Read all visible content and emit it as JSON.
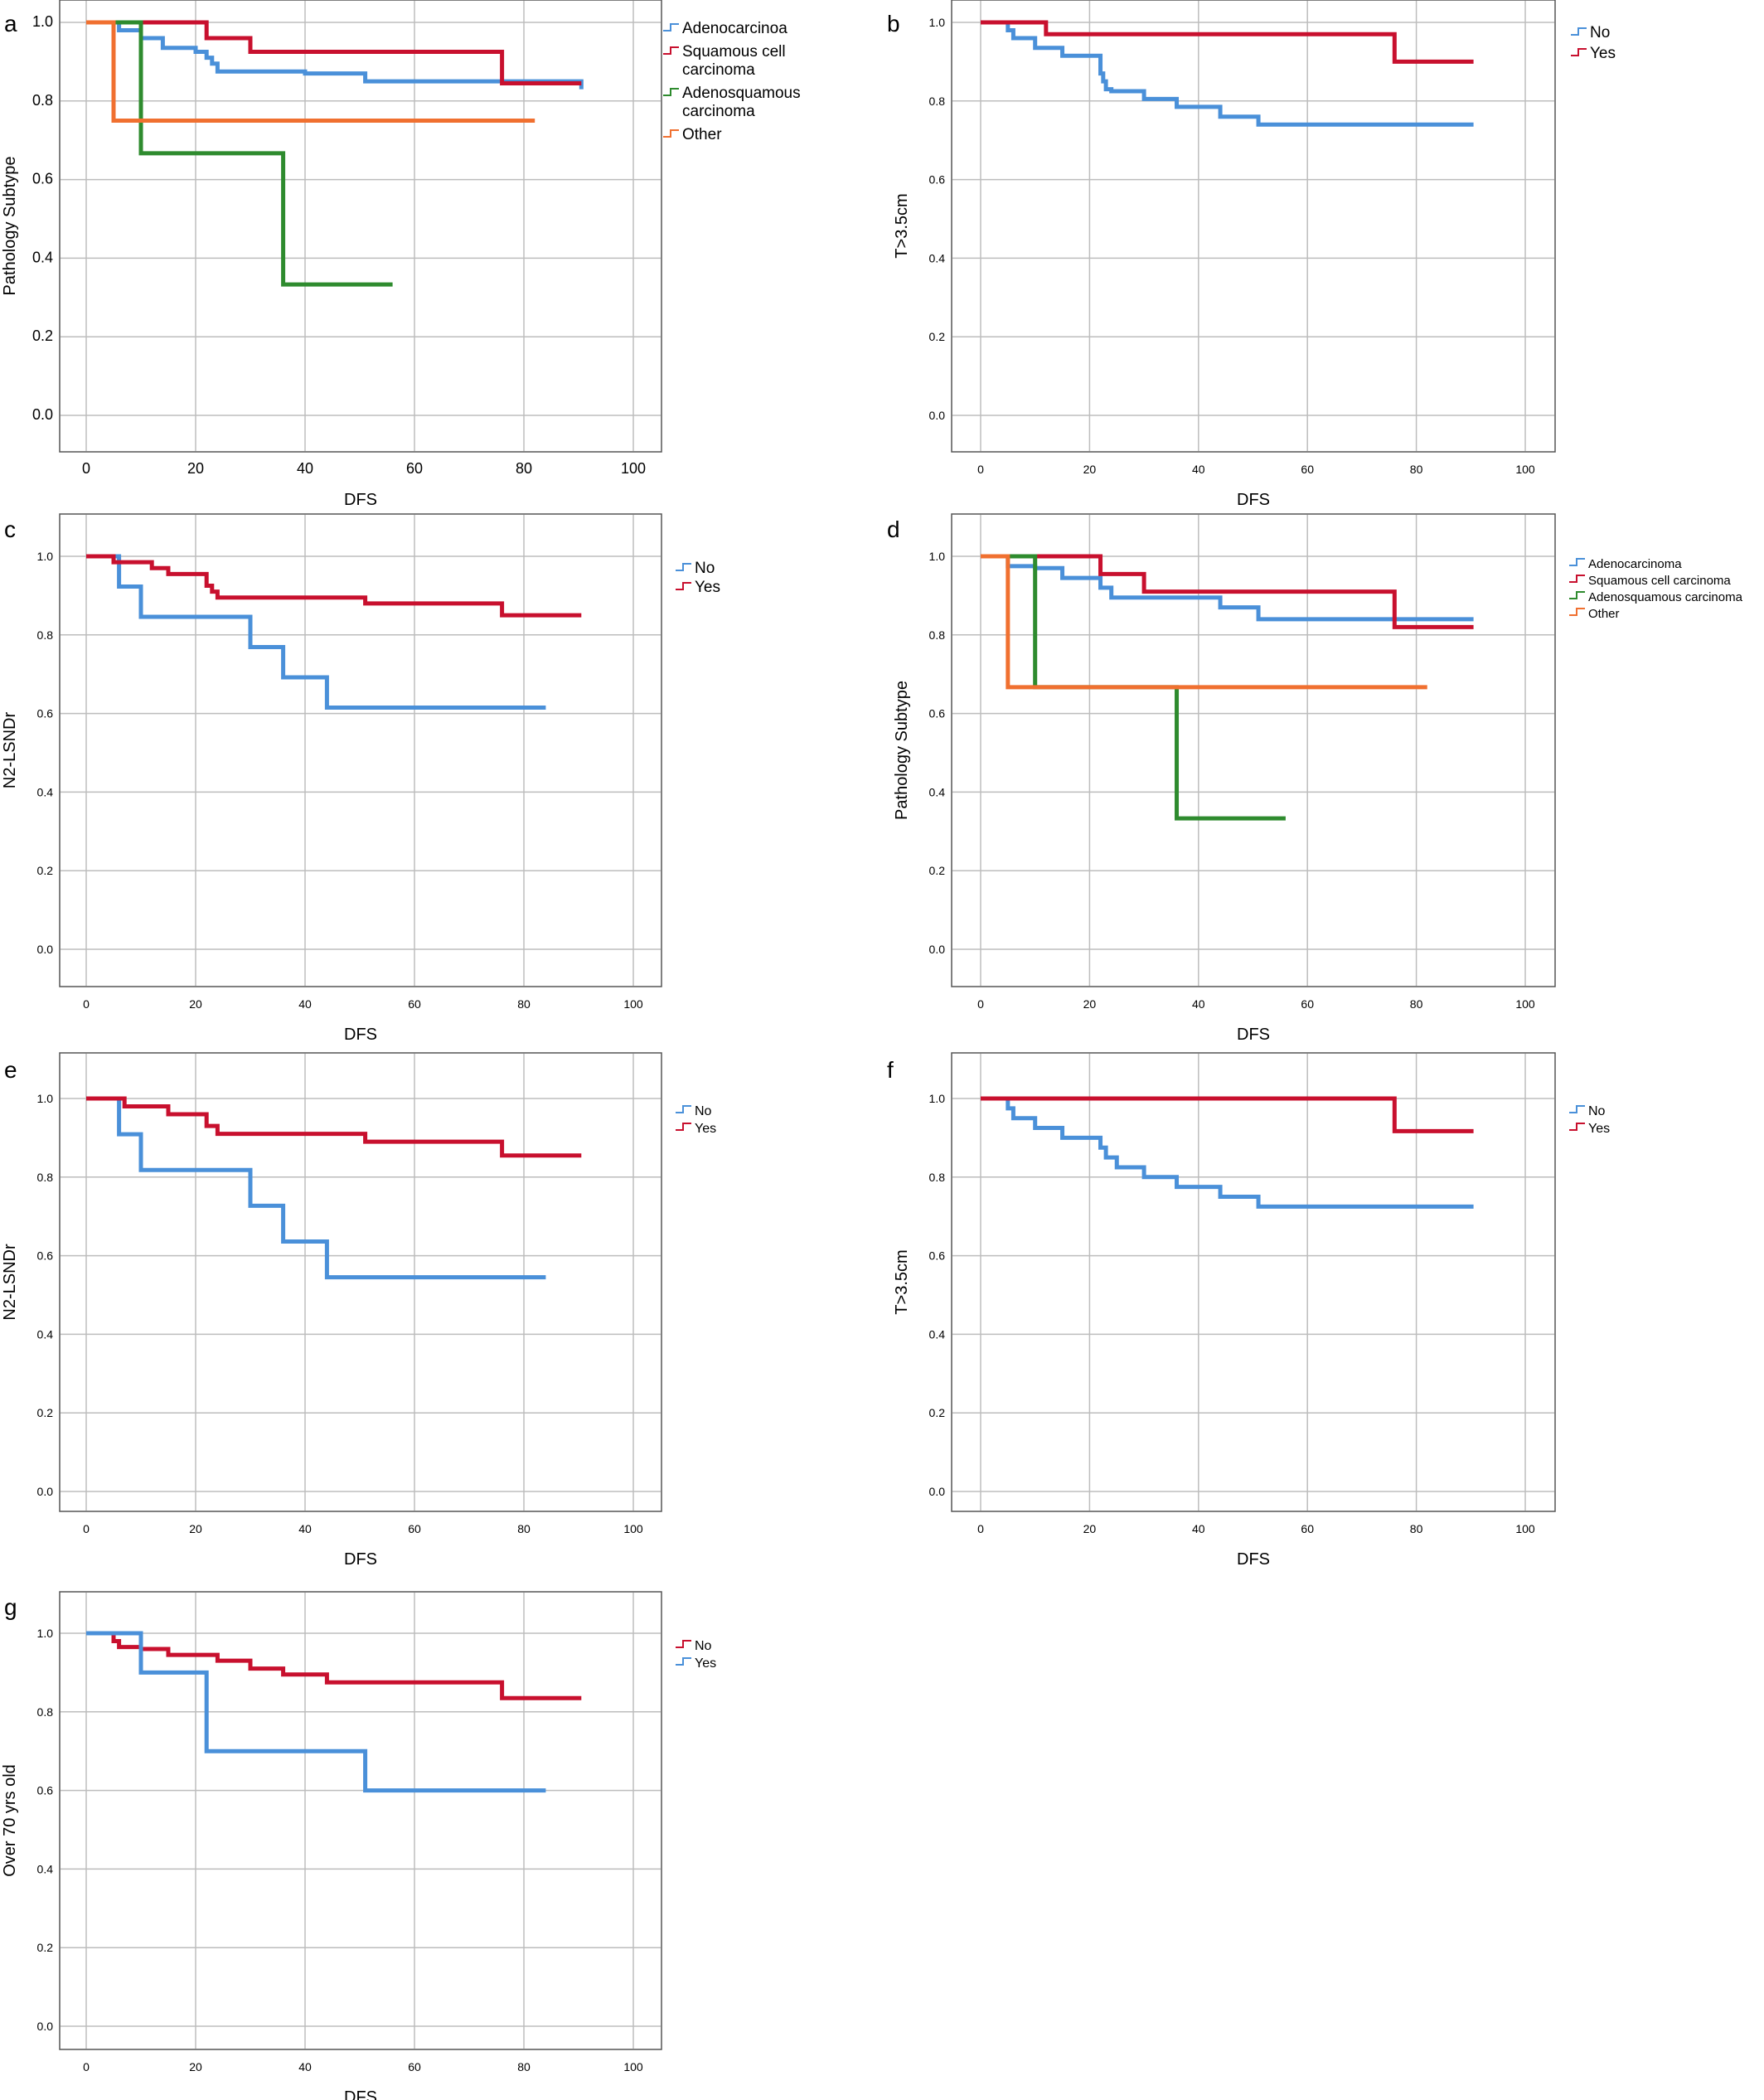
{
  "colors": {
    "blue": "#4a90d9",
    "red": "#c8102e",
    "green": "#2e8b2e",
    "orange": "#f07030",
    "grid": "#bdbdbd",
    "axis": "#555555"
  },
  "chart_data": [
    {
      "panel": "a",
      "type": "line",
      "step": true,
      "xlabel": "DFS",
      "ylabel": "Pathology Subtype",
      "xlim": [
        0,
        100
      ],
      "ylim": [
        0,
        1
      ],
      "xticks": [
        "0",
        "20",
        "40",
        "60",
        "80",
        "100"
      ],
      "yticks": [
        "0.0",
        "0.2",
        "0.4",
        "0.6",
        "0.8",
        "1.0"
      ],
      "grid": true,
      "legend_position": "top-right",
      "series": [
        {
          "name": "Adenocarcinoa",
          "color": "blue",
          "x": [
            0,
            6,
            10,
            14,
            20,
            22,
            23,
            24,
            40,
            51,
            90.5
          ],
          "y": [
            1,
            0.98,
            0.96,
            0.935,
            0.925,
            0.91,
            0.895,
            0.875,
            0.87,
            0.85,
            0.83
          ]
        },
        {
          "name": "Squamous cell carcinoma",
          "color": "red",
          "x": [
            0,
            22,
            30,
            76,
            90.5
          ],
          "y": [
            1,
            0.96,
            0.925,
            0.845,
            0.845
          ]
        },
        {
          "name": "Adenosquamous carcinoma",
          "color": "green",
          "x": [
            0,
            10,
            36,
            56
          ],
          "y": [
            1,
            0.667,
            0.333,
            0.333
          ]
        },
        {
          "name": "Other",
          "color": "orange",
          "x": [
            0,
            5,
            82
          ],
          "y": [
            1,
            0.75,
            0.75
          ]
        }
      ]
    },
    {
      "panel": "b",
      "type": "line",
      "step": true,
      "xlabel": "DFS",
      "ylabel": "T>3.5cm",
      "xlim": [
        0,
        100
      ],
      "ylim": [
        0,
        1
      ],
      "xticks": [
        "0",
        "20",
        "40",
        "60",
        "80",
        "100"
      ],
      "yticks": [
        "0.0",
        "0.2",
        "0.4",
        "0.6",
        "0.8",
        "1.0"
      ],
      "grid": true,
      "legend_position": "top-right",
      "series": [
        {
          "name": "No",
          "color": "blue",
          "x": [
            0,
            5,
            6,
            10,
            15,
            22,
            22.5,
            23,
            24,
            30,
            36,
            44,
            51,
            90.5
          ],
          "y": [
            1,
            0.98,
            0.96,
            0.935,
            0.915,
            0.87,
            0.85,
            0.83,
            0.825,
            0.805,
            0.785,
            0.76,
            0.74,
            0.74
          ]
        },
        {
          "name": "Yes",
          "color": "red",
          "x": [
            0,
            12,
            76,
            90.5
          ],
          "y": [
            1,
            0.97,
            0.9,
            0.9
          ]
        }
      ]
    },
    {
      "panel": "c",
      "type": "line",
      "step": true,
      "xlabel": "DFS",
      "ylabel": "N2-LSNDr",
      "xlim": [
        0,
        100
      ],
      "ylim": [
        0,
        1
      ],
      "xticks": [
        "0",
        "20",
        "40",
        "60",
        "80",
        "100"
      ],
      "yticks": [
        "0.0",
        "0.2",
        "0.4",
        "0.6",
        "0.8",
        "1.0"
      ],
      "grid": true,
      "legend_position": "top-right",
      "series": [
        {
          "name": "No",
          "color": "blue",
          "x": [
            0,
            6,
            10,
            30,
            36,
            44,
            84
          ],
          "y": [
            1,
            0.923,
            0.846,
            0.769,
            0.692,
            0.615,
            0.615
          ]
        },
        {
          "name": "Yes",
          "color": "red",
          "x": [
            0,
            5,
            12,
            15,
            22,
            23,
            24,
            51,
            76,
            90.5
          ],
          "y": [
            1,
            0.985,
            0.97,
            0.955,
            0.925,
            0.91,
            0.895,
            0.88,
            0.85,
            0.85
          ]
        }
      ]
    },
    {
      "panel": "d",
      "type": "line",
      "step": true,
      "xlabel": "DFS",
      "ylabel": "Pathology Subtype",
      "xlim": [
        0,
        100
      ],
      "ylim": [
        0,
        1
      ],
      "xticks": [
        "0",
        "20",
        "40",
        "60",
        "80",
        "100"
      ],
      "yticks": [
        "0.0",
        "0.2",
        "0.4",
        "0.6",
        "0.8",
        "1.0"
      ],
      "grid": true,
      "legend_position": "top-right",
      "series": [
        {
          "name": "Adenocarcinoma",
          "color": "blue",
          "x": [
            0,
            5,
            10,
            15,
            22,
            24,
            44,
            51,
            90.5
          ],
          "y": [
            1,
            0.975,
            0.97,
            0.945,
            0.92,
            0.895,
            0.87,
            0.84,
            0.84
          ]
        },
        {
          "name": "Squamous cell carcinoma",
          "color": "red",
          "x": [
            0,
            22,
            30,
            76,
            90.5
          ],
          "y": [
            1,
            0.955,
            0.91,
            0.82,
            0.82
          ]
        },
        {
          "name": "Adenosquamous carcinoma",
          "color": "green",
          "x": [
            0,
            10,
            36,
            56
          ],
          "y": [
            1,
            0.667,
            0.333,
            0.333
          ]
        },
        {
          "name": "Other",
          "color": "orange",
          "x": [
            0,
            5,
            82
          ],
          "y": [
            1,
            0.667,
            0.667
          ]
        }
      ]
    },
    {
      "panel": "e",
      "type": "line",
      "step": true,
      "xlabel": "DFS",
      "ylabel": "N2-LSNDr",
      "xlim": [
        0,
        100
      ],
      "ylim": [
        0,
        1
      ],
      "xticks": [
        "0",
        "20",
        "40",
        "60",
        "80",
        "100"
      ],
      "yticks": [
        "0.0",
        "0.2",
        "0.4",
        "0.6",
        "0.8",
        "1.0"
      ],
      "grid": true,
      "legend_position": "top-right",
      "series": [
        {
          "name": "No",
          "color": "blue",
          "x": [
            0,
            6,
            10,
            30,
            36,
            44,
            84
          ],
          "y": [
            1,
            0.909,
            0.818,
            0.727,
            0.636,
            0.545,
            0.545
          ]
        },
        {
          "name": "Yes",
          "color": "red",
          "x": [
            0,
            7,
            15,
            22,
            24,
            51,
            76,
            90.5
          ],
          "y": [
            1,
            0.98,
            0.96,
            0.93,
            0.91,
            0.89,
            0.855,
            0.855
          ]
        }
      ]
    },
    {
      "panel": "f",
      "type": "line",
      "step": true,
      "xlabel": "DFS",
      "ylabel": "T>3.5cm",
      "xlim": [
        0,
        100
      ],
      "ylim": [
        0,
        1
      ],
      "xticks": [
        "0",
        "20",
        "40",
        "60",
        "80",
        "100"
      ],
      "yticks": [
        "0.0",
        "0.2",
        "0.4",
        "0.6",
        "0.8",
        "1.0"
      ],
      "grid": true,
      "legend_position": "top-right",
      "series": [
        {
          "name": "No",
          "color": "blue",
          "x": [
            0,
            5,
            6,
            10,
            15,
            22,
            23,
            25,
            30,
            36,
            44,
            51,
            90.5
          ],
          "y": [
            1,
            0.975,
            0.95,
            0.925,
            0.9,
            0.875,
            0.85,
            0.825,
            0.8,
            0.775,
            0.75,
            0.725,
            0.725
          ]
        },
        {
          "name": "Yes",
          "color": "red",
          "x": [
            0,
            76,
            90.5
          ],
          "y": [
            1,
            0.917,
            0.917
          ]
        }
      ]
    },
    {
      "panel": "g",
      "type": "line",
      "step": true,
      "xlabel": "DFS",
      "ylabel": "Over 70 yrs old",
      "xlim": [
        0,
        100
      ],
      "ylim": [
        0,
        1
      ],
      "xticks": [
        "0",
        "20",
        "40",
        "60",
        "80",
        "100"
      ],
      "yticks": [
        "0.0",
        "0.2",
        "0.4",
        "0.6",
        "0.8",
        "1.0"
      ],
      "grid": true,
      "legend_position": "top-right",
      "series": [
        {
          "name": "No",
          "color": "red",
          "x": [
            0,
            5,
            6,
            10,
            15,
            22,
            24,
            30,
            36,
            44,
            76,
            90.5
          ],
          "y": [
            1,
            0.98,
            0.965,
            0.96,
            0.945,
            0.945,
            0.93,
            0.91,
            0.895,
            0.875,
            0.835,
            0.835
          ]
        },
        {
          "name": "Yes",
          "color": "blue",
          "x": [
            0,
            10,
            22,
            51,
            84
          ],
          "y": [
            1,
            0.9,
            0.7,
            0.6,
            0.6
          ]
        }
      ]
    }
  ]
}
